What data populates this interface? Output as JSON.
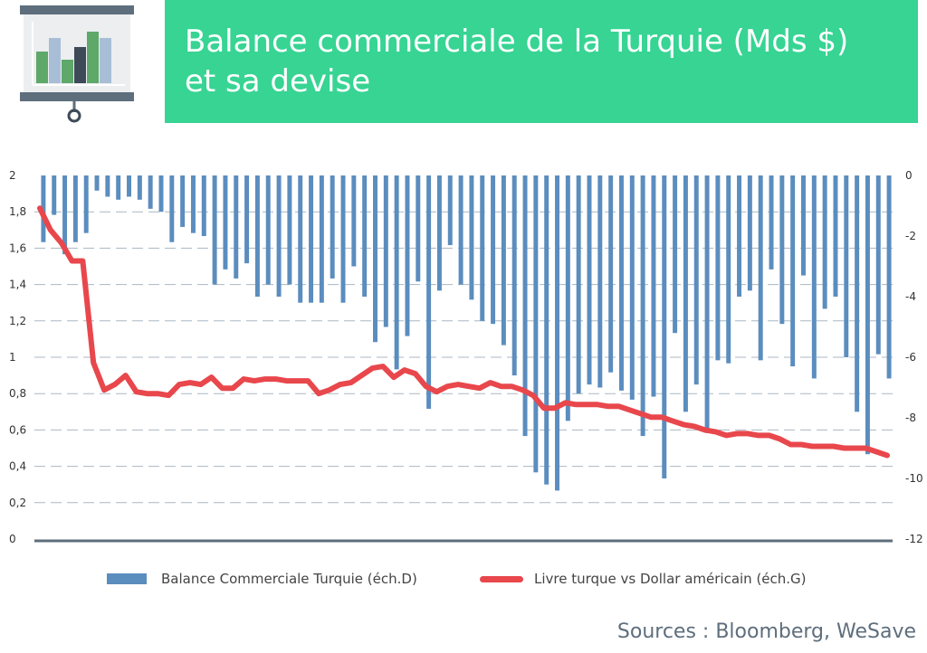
{
  "header": {
    "title_line1": "Balance commerciale de la Turquie (Mds $)",
    "title_line2": "et sa devise",
    "icon": "presentation-board-chart-icon",
    "accent_color": "#37d493"
  },
  "legend": {
    "bar_label": "Balance Commerciale Turquie (éch.D)",
    "line_label": "Livre turque vs Dollar américain (éch.G)"
  },
  "source": "Sources : Bloomberg, WeSave",
  "chart_data": {
    "type": "bar+line",
    "left_axis": {
      "min": 0,
      "max": 2,
      "ticks": [
        "0",
        "0,2",
        "0,4",
        "0,6",
        "0,8",
        "1",
        "1,2",
        "1,4",
        "1,6",
        "1,8",
        "2"
      ]
    },
    "right_axis": {
      "min": -12,
      "max": 0,
      "ticks": [
        "-12",
        "-10",
        "-8",
        "-6",
        "-4",
        "-2",
        "0"
      ]
    },
    "grid": "dashed horizontal",
    "series": [
      {
        "name": "Balance Commerciale Turquie (éch.D)",
        "type": "bar",
        "axis": "right",
        "color": "#5b8dbe",
        "values": [
          -2.2,
          -1.3,
          -2.6,
          -2.2,
          -1.9,
          -0.5,
          -0.7,
          -0.8,
          -0.7,
          -0.8,
          -1.1,
          -1.2,
          -2.2,
          -1.7,
          -1.9,
          -2.0,
          -3.6,
          -3.1,
          -3.4,
          -2.9,
          -4.0,
          -3.6,
          -4.0,
          -3.6,
          -4.2,
          -4.2,
          -4.2,
          -3.4,
          -4.2,
          -3.0,
          -4.0,
          -5.5,
          -5.0,
          -6.4,
          -5.3,
          -3.5,
          -7.7,
          -3.8,
          -2.3,
          -3.6,
          -4.1,
          -4.8,
          -4.9,
          -5.6,
          -6.6,
          -8.6,
          -9.8,
          -10.2,
          -10.4,
          -8.1,
          -7.2,
          -6.9,
          -7.0,
          -6.5,
          -7.1,
          -7.4,
          -8.6,
          -7.3,
          -10.0,
          -5.2,
          -7.8,
          -6.9,
          -8.5,
          -6.1,
          -6.2,
          -4.0,
          -3.8,
          -6.1,
          -3.1,
          -4.9,
          -6.3,
          -3.3,
          -6.7,
          -4.4,
          -4.0,
          -6.0,
          -7.8,
          -9.2,
          -5.9,
          -6.7
        ]
      },
      {
        "name": "Livre turque vs Dollar américain (éch.G)",
        "type": "line",
        "axis": "left",
        "color": "#e8474c",
        "values": [
          1.82,
          1.7,
          1.63,
          1.53,
          1.53,
          0.97,
          0.82,
          0.85,
          0.9,
          0.81,
          0.8,
          0.8,
          0.79,
          0.85,
          0.86,
          0.85,
          0.89,
          0.83,
          0.83,
          0.88,
          0.87,
          0.88,
          0.88,
          0.87,
          0.87,
          0.87,
          0.8,
          0.82,
          0.85,
          0.86,
          0.9,
          0.94,
          0.95,
          0.89,
          0.93,
          0.91,
          0.84,
          0.81,
          0.84,
          0.85,
          0.84,
          0.83,
          0.86,
          0.84,
          0.84,
          0.82,
          0.79,
          0.72,
          0.72,
          0.75,
          0.74,
          0.74,
          0.74,
          0.73,
          0.73,
          0.71,
          0.69,
          0.67,
          0.67,
          0.65,
          0.63,
          0.62,
          0.6,
          0.59,
          0.57,
          0.58,
          0.58,
          0.57,
          0.57,
          0.55,
          0.52,
          0.52,
          0.51,
          0.51,
          0.51,
          0.5,
          0.5,
          0.5,
          0.48,
          0.46
        ]
      }
    ]
  }
}
